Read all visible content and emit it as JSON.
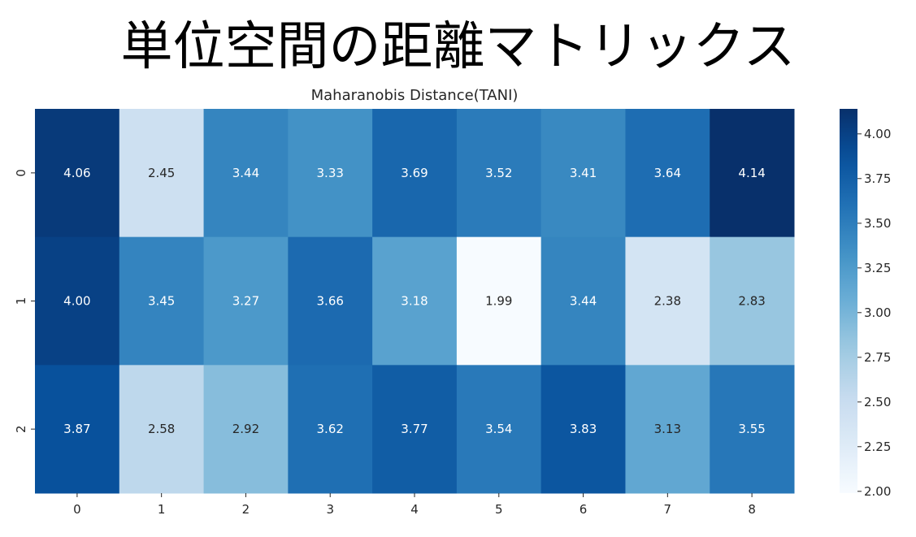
{
  "slide": {
    "title": "単位空間の距離マトリックス"
  },
  "chart_data": {
    "type": "heatmap",
    "title": "Maharanobis Distance(TANI)",
    "xlabel": "",
    "ylabel": "",
    "x_categories": [
      "0",
      "1",
      "2",
      "3",
      "4",
      "5",
      "6",
      "7",
      "8"
    ],
    "y_categories": [
      "0",
      "1",
      "2"
    ],
    "values": [
      [
        4.06,
        2.45,
        3.44,
        3.33,
        3.69,
        3.52,
        3.41,
        3.64,
        4.14
      ],
      [
        4.0,
        3.45,
        3.27,
        3.66,
        3.18,
        1.99,
        3.44,
        2.38,
        2.83
      ],
      [
        3.87,
        2.58,
        2.92,
        3.62,
        3.77,
        3.54,
        3.83,
        3.13,
        3.55
      ]
    ],
    "value_labels": [
      [
        "4.06",
        "2.45",
        "3.44",
        "3.33",
        "3.69",
        "3.52",
        "3.41",
        "3.64",
        "4.14"
      ],
      [
        "4.00",
        "3.45",
        "3.27",
        "3.66",
        "3.18",
        "1.99",
        "3.44",
        "2.38",
        "2.83"
      ],
      [
        "3.87",
        "2.58",
        "2.92",
        "3.62",
        "3.77",
        "3.54",
        "3.83",
        "3.13",
        "3.55"
      ]
    ],
    "colormap": "Blues",
    "colorbar": {
      "range": [
        1.99,
        4.14
      ],
      "ticks": [
        2.0,
        2.25,
        2.5,
        2.75,
        3.0,
        3.25,
        3.5,
        3.75,
        4.0
      ],
      "tick_labels": [
        "2.00",
        "2.25",
        "2.50",
        "2.75",
        "3.00",
        "3.25",
        "3.50",
        "3.75",
        "4.00"
      ]
    },
    "colors": {
      "low": "#f7fbff",
      "high": "#08306b",
      "text_dark": "#262626",
      "text_light": "#ffffff"
    }
  }
}
